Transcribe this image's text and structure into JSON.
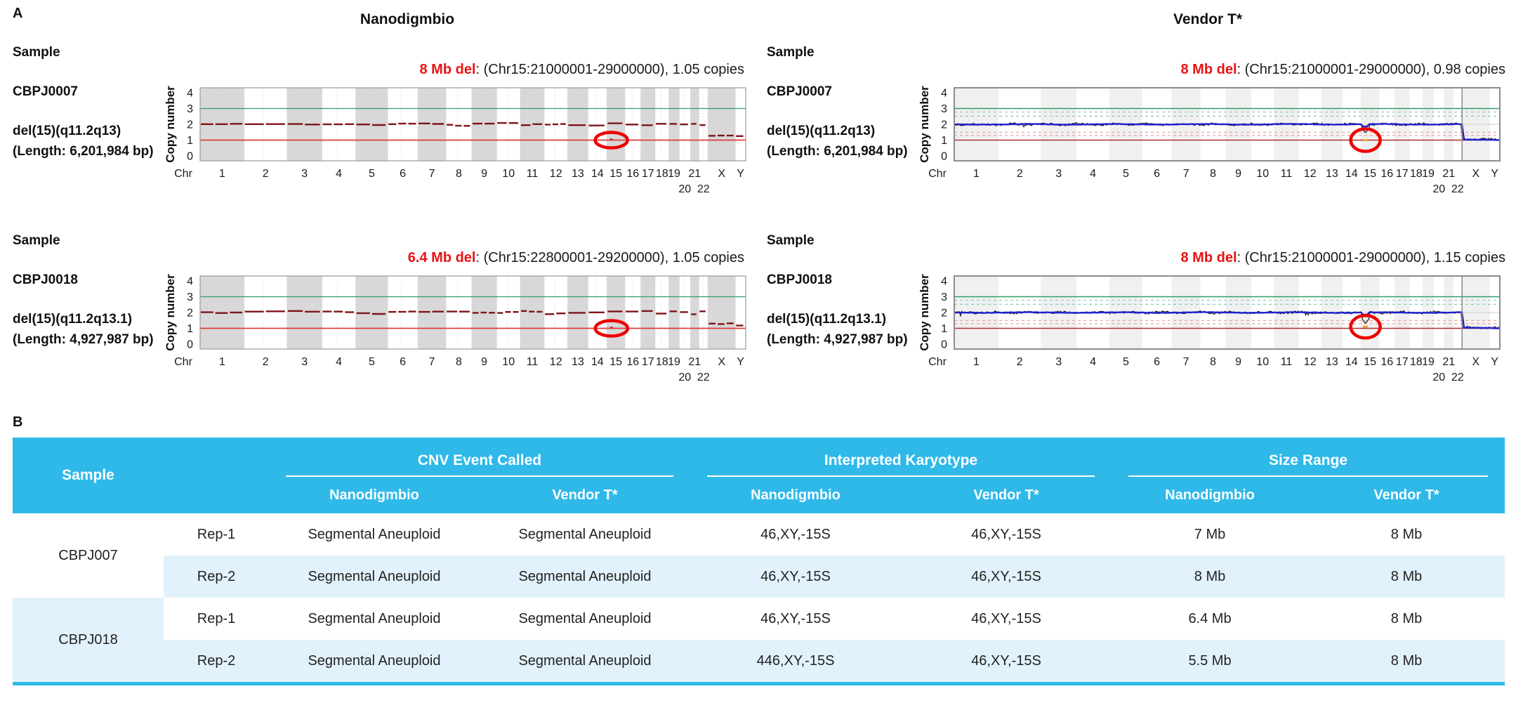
{
  "colors": {
    "table_header": "#2FB9E8",
    "table_row_alt": "#E2F2FC",
    "annotation_red": "#E81313",
    "green_line": "#2F9E68",
    "red_line": "#E03B3B",
    "dark_red_data": "#7E1416",
    "noisy_black": "#1A1A1A",
    "blue_line": "#2020CF",
    "band_gray_left": "#D8D8D8",
    "band_gray_right": "#F0F0F0",
    "teal_dashed": "#7FC8A9",
    "pink_dashed": "#E89B9B",
    "circle_red": "#EE0000",
    "orange_mark": "#F0A030"
  },
  "panel_a": {
    "label": "A",
    "column_titles": [
      "Nanodigmbio",
      "Vendor T*"
    ],
    "axis": {
      "ylabel": "Copy number",
      "yticks": [
        "4",
        "3",
        "2",
        "1",
        "0"
      ],
      "x_prefix": "Chr",
      "chromosomes": [
        "1",
        "2",
        "3",
        "4",
        "5",
        "6",
        "7",
        "8",
        "9",
        "10",
        "11",
        "12",
        "13",
        "14",
        "15",
        "16",
        "17",
        "18",
        "19",
        "20",
        "21",
        "22",
        "X",
        "Y"
      ]
    },
    "rows": [
      {
        "sample_label": "Sample",
        "sample_id": "CBPJ0007",
        "karyotype": "del(15)(q11.2q13)",
        "length": "(Length: 6,201,984 bp)"
      },
      {
        "sample_label": "Sample",
        "sample_id": "CBPJ0018",
        "karyotype": "del(15)(q11.2q13.1)",
        "length": "(Length: 4,927,987 bp)"
      }
    ]
  },
  "chart_data": [
    {
      "type": "line",
      "style": "segments",
      "seed": 11,
      "title": "Nanodigmbio",
      "sample": "CBPJ0007",
      "xlabel": "Chr",
      "ylabel": "Copy number",
      "ylim": [
        0,
        4
      ],
      "yticks": [
        4,
        3,
        2,
        1,
        0
      ],
      "x_categories": [
        "1",
        "2",
        "3",
        "4",
        "5",
        "6",
        "7",
        "8",
        "9",
        "10",
        "11",
        "12",
        "13",
        "14",
        "15",
        "16",
        "17",
        "18",
        "19",
        "20",
        "21",
        "22",
        "X",
        "Y"
      ],
      "autosome_cn": 2.0,
      "x_cn": 1.3,
      "y_cn": 1.22,
      "deletion": {
        "chr": "15",
        "start_mb": 21,
        "end_mb": 29,
        "copies": 1.05,
        "size_label": "8 Mb del"
      },
      "circle_cn": 1.0,
      "annotation": {
        "event": "8 Mb del",
        "text": ": (Chr15:21000001-29000000), 1.05 copies"
      }
    },
    {
      "type": "line",
      "style": "noisy",
      "seed": 22,
      "title": "Vendor T*",
      "sample": "CBPJ0007",
      "xlabel": "Chr",
      "ylabel": "Copy number",
      "ylim": [
        0,
        4
      ],
      "yticks": [
        4,
        3,
        2,
        1,
        0
      ],
      "x_categories": [
        "1",
        "2",
        "3",
        "4",
        "5",
        "6",
        "7",
        "8",
        "9",
        "10",
        "11",
        "12",
        "13",
        "14",
        "15",
        "16",
        "17",
        "18",
        "19",
        "20",
        "21",
        "22",
        "X",
        "Y"
      ],
      "autosome_cn": 2.0,
      "xy_cn": 1.05,
      "dip_cn": 1.45,
      "deletion": {
        "chr": "15",
        "start_mb": 21,
        "end_mb": 29,
        "copies": 0.98,
        "size_label": "8 Mb del"
      },
      "circle_cn": 1.0,
      "annotation": {
        "event": "8 Mb del",
        "text": ": (Chr15:21000001-29000000), 0.98 copies"
      }
    },
    {
      "type": "line",
      "style": "segments",
      "seed": 33,
      "title": "Nanodigmbio",
      "sample": "CBPJ0018",
      "xlabel": "Chr",
      "ylabel": "Copy number",
      "ylim": [
        0,
        4
      ],
      "yticks": [
        4,
        3,
        2,
        1,
        0
      ],
      "x_categories": [
        "1",
        "2",
        "3",
        "4",
        "5",
        "6",
        "7",
        "8",
        "9",
        "10",
        "11",
        "12",
        "13",
        "14",
        "15",
        "16",
        "17",
        "18",
        "19",
        "20",
        "21",
        "22",
        "X",
        "Y"
      ],
      "autosome_cn": 2.0,
      "x_cn": 1.28,
      "y_cn": 1.15,
      "deletion": {
        "chr": "15",
        "start_mb": 22.8,
        "end_mb": 29.2,
        "copies": 1.05,
        "size_label": "6.4 Mb del"
      },
      "circle_cn": 1.0,
      "annotation": {
        "event": "6.4 Mb del",
        "text": ": (Chr15:22800001-29200000), 1.05 copies"
      }
    },
    {
      "type": "line",
      "style": "noisy",
      "seed": 44,
      "title": "Vendor T*",
      "sample": "CBPJ0018",
      "xlabel": "Chr",
      "ylabel": "Copy number",
      "ylim": [
        0,
        4
      ],
      "yticks": [
        4,
        3,
        2,
        1,
        0
      ],
      "x_categories": [
        "1",
        "2",
        "3",
        "4",
        "5",
        "6",
        "7",
        "8",
        "9",
        "10",
        "11",
        "12",
        "13",
        "14",
        "15",
        "16",
        "17",
        "18",
        "19",
        "20",
        "21",
        "22",
        "X",
        "Y"
      ],
      "autosome_cn": 2.0,
      "xy_cn": 1.05,
      "dip_cn": 1.3,
      "deletion": {
        "chr": "15",
        "start_mb": 21,
        "end_mb": 29,
        "copies": 1.15,
        "size_label": "8 Mb del"
      },
      "circle_cn": 1.1,
      "annotation": {
        "event": "8 Mb del",
        "text": ": (Chr15:21000001-29000000), 1.15 copies"
      }
    }
  ],
  "panel_b": {
    "label": "B",
    "headers": {
      "sample": "Sample",
      "rep": "",
      "groups": [
        {
          "label": "CNV Event Called",
          "subs": [
            "Nanodigmbio",
            "Vendor T*"
          ]
        },
        {
          "label": "Interpreted Karyotype",
          "subs": [
            "Nanodigmbio",
            "Vendor T*"
          ]
        },
        {
          "label": "Size Range",
          "subs": [
            "Nanodigmbio",
            "Vendor T*"
          ]
        }
      ]
    },
    "rows": [
      {
        "sample": "CBPJ007",
        "rep": "Rep-1",
        "cnv_nano": "Segmental Aneuploid",
        "cnv_vendor": "Segmental Aneuploid",
        "ik_nano": "46,XY,-15S",
        "ik_vendor": "46,XY,-15S",
        "sr_nano": "7 Mb",
        "sr_vendor": "8 Mb"
      },
      {
        "sample": "",
        "rep": "Rep-2",
        "cnv_nano": "Segmental Aneuploid",
        "cnv_vendor": "Segmental Aneuploid",
        "ik_nano": "46,XY,-15S",
        "ik_vendor": "46,XY,-15S",
        "sr_nano": "8 Mb",
        "sr_vendor": "8 Mb"
      },
      {
        "sample": "CBPJ018",
        "rep": "Rep-1",
        "cnv_nano": "Segmental Aneuploid",
        "cnv_vendor": "Segmental Aneuploid",
        "ik_nano": "46,XY,-15S",
        "ik_vendor": "46,XY,-15S",
        "sr_nano": "6.4 Mb",
        "sr_vendor": "8 Mb"
      },
      {
        "sample": "",
        "rep": "Rep-2",
        "cnv_nano": "Segmental Aneuploid",
        "cnv_vendor": "Segmental Aneuploid",
        "ik_nano": "446,XY,-15S",
        "ik_vendor": "46,XY,-15S",
        "sr_nano": "5.5 Mb",
        "sr_vendor": "8 Mb"
      }
    ]
  }
}
